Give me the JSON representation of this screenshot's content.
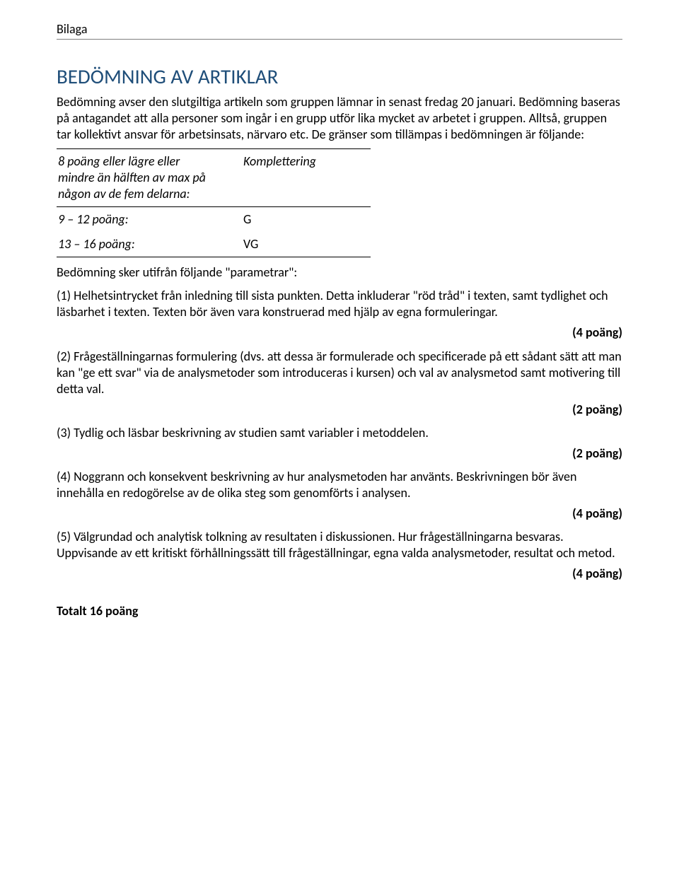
{
  "header": {
    "label": "Bilaga"
  },
  "title": "BEDÖMNING AV ARTIKLAR",
  "intro": "Bedömning avser den slutgiltiga artikeln som gruppen lämnar in senast fredag 20 januari. Bedömning baseras på antagandet att alla personer som ingår i en grupp utför lika mycket av arbetet i gruppen. Alltså, gruppen tar kollektivt ansvar för arbetsinsats, närvaro etc. De gränser som tillämpas i bedömningen är följande:",
  "table": {
    "rows": [
      {
        "left": "8 poäng eller lägre eller mindre än hälften av max på någon av de fem delarna:",
        "right": "Komplettering",
        "rightItalic": true
      },
      {
        "left": "9 – 12 poäng:",
        "right": "G",
        "rightItalic": false
      },
      {
        "left": "13 – 16 poäng:",
        "right": "VG",
        "rightItalic": false
      }
    ]
  },
  "paramHeader": "Bedömning sker utifrån följande \"parametrar\":",
  "criteria": [
    {
      "text": "(1) Helhetsintrycket från inledning till sista punkten. Detta inkluderar \"röd tråd\" i texten, samt tydlighet och läsbarhet i texten. Texten bör även vara konstruerad med hjälp av egna formuleringar.",
      "points": "(4 poäng)"
    },
    {
      "text": "(2) Frågeställningarnas formulering (dvs. att dessa är formulerade och specificerade på ett sådant sätt att man kan \"ge ett svar\" via de analysmetoder som introduceras i kursen) och val av analysmetod samt motivering till detta val.",
      "points": "(2 poäng)"
    },
    {
      "text": "(3) Tydlig och läsbar beskrivning av studien samt variabler i metoddelen.",
      "points": "(2 poäng)"
    },
    {
      "text": "(4) Noggrann och konsekvent beskrivning av hur analysmetoden har använts. Beskrivningen bör även innehålla en redogörelse av de olika steg som genomförts i analysen.",
      "points": "(4 poäng)"
    },
    {
      "text": "(5) Välgrundad och analytisk tolkning av resultaten i diskussionen. Hur frågeställningarna besvaras. Uppvisande av ett kritiskt förhållningssätt till frågeställningar, egna valda analysmetoder, resultat och metod.",
      "points": "(4 poäng)"
    }
  ],
  "total": "Totalt 16 poäng",
  "colors": {
    "title": "#1f4e79",
    "text": "#000000",
    "rule": "#7f7f7f",
    "background": "#ffffff"
  },
  "typography": {
    "bodyFontSize": 18,
    "titleFontSize": 29,
    "fontFamily": "Calibri"
  }
}
